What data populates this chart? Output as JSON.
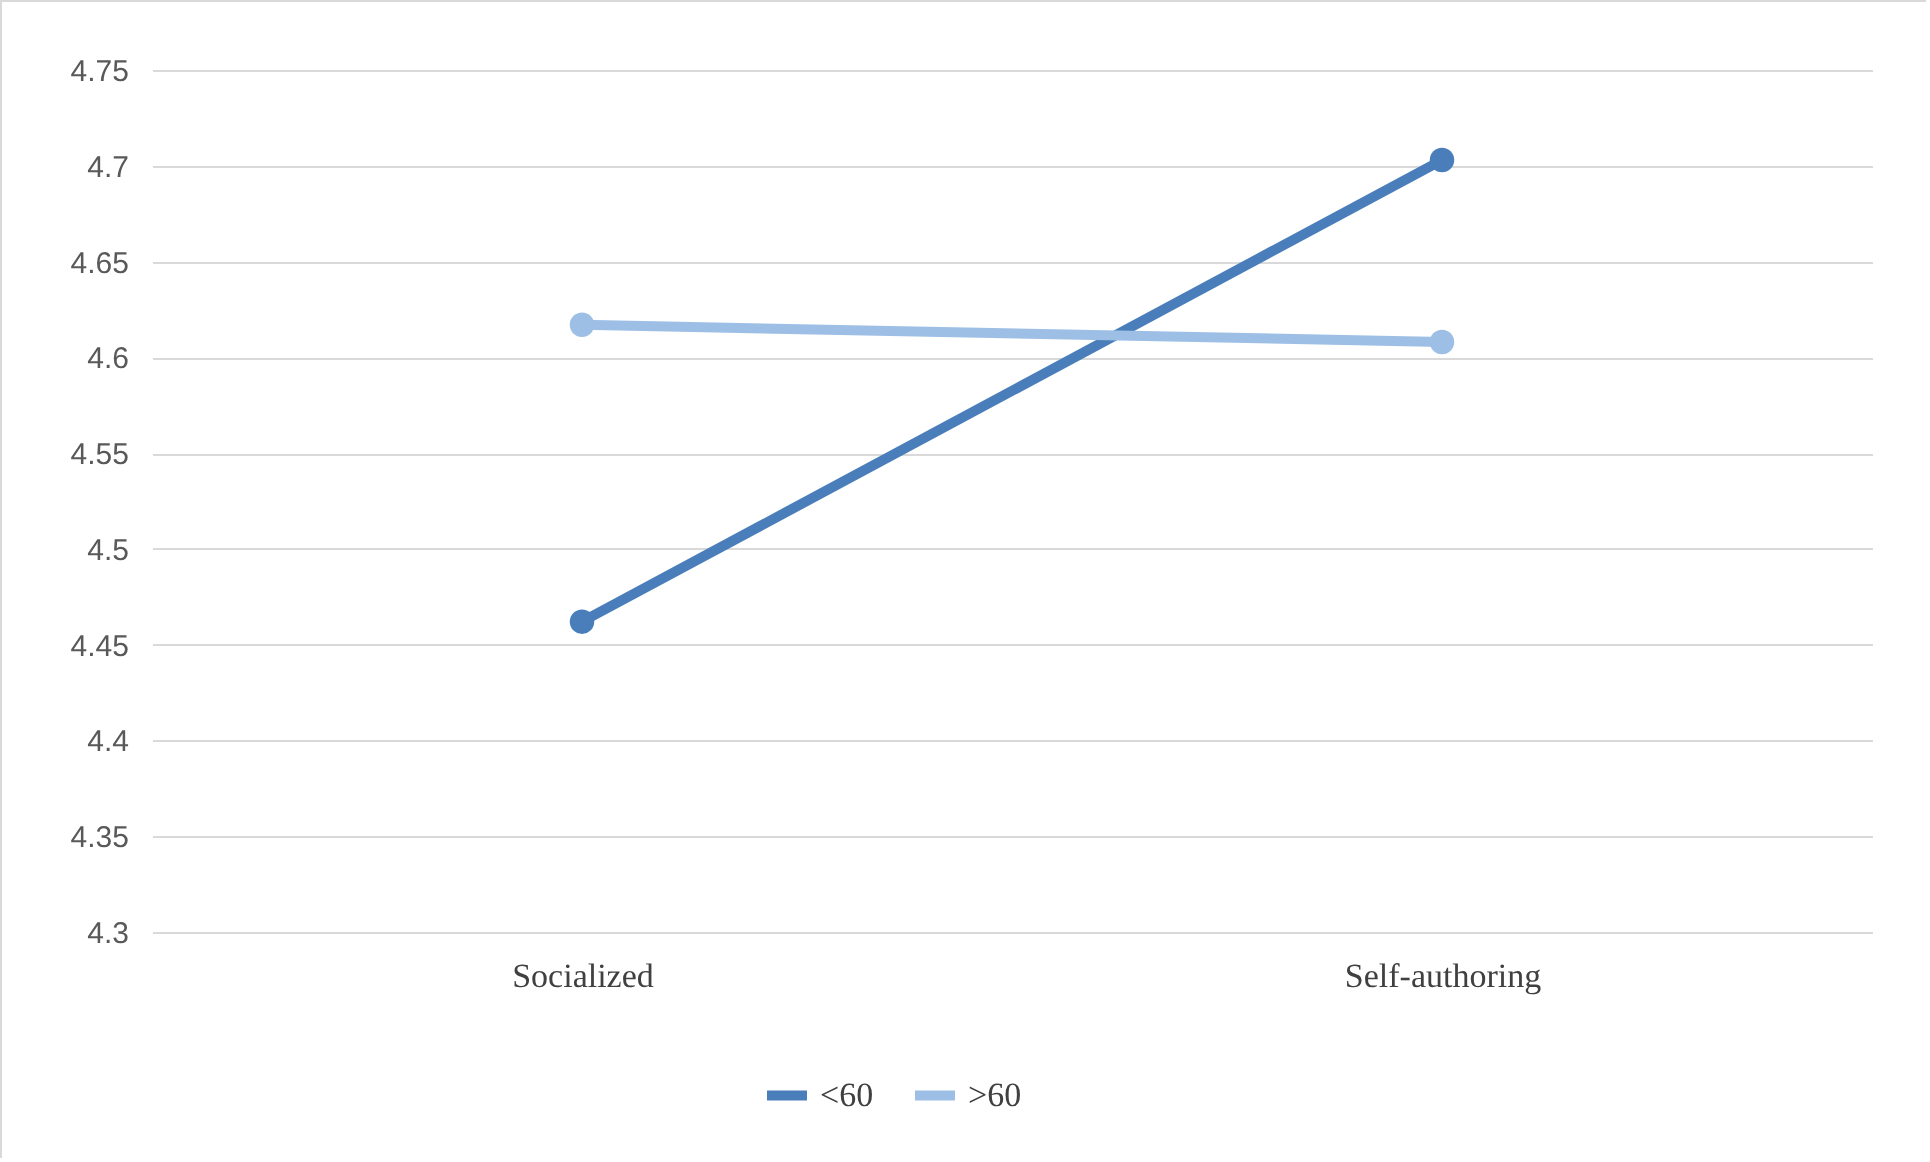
{
  "chart_data": {
    "type": "line",
    "categories": [
      "Socialized",
      "Self-authoring"
    ],
    "series": [
      {
        "name": "<60",
        "color": "#4a7ebb",
        "values": [
          4.462,
          4.703
        ]
      },
      {
        "name": ">60",
        "color": "#9dbfe6",
        "values": [
          4.617,
          4.608
        ]
      }
    ],
    "ylim": [
      4.3,
      4.75
    ],
    "yticks": [
      4.3,
      4.35,
      4.4,
      4.45,
      4.5,
      4.55,
      4.6,
      4.65,
      4.7,
      4.75
    ],
    "grid": "y",
    "legend": "bottom",
    "marker": "circle",
    "line_style": "solid"
  }
}
